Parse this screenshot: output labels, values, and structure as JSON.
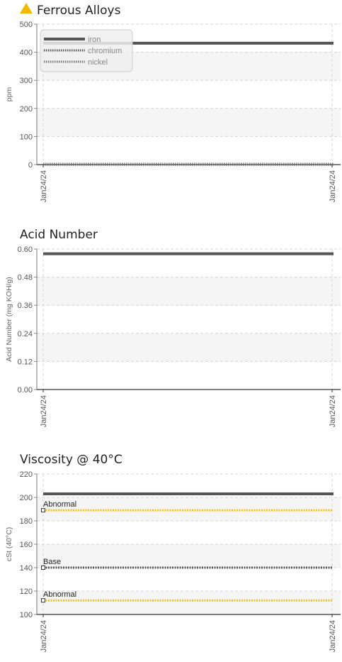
{
  "chart_data": [
    {
      "type": "line",
      "title": "Ferrous Alloys",
      "alert": "warning",
      "alert_color": "#f5b800",
      "xlabel": "",
      "ylabel": "ppm",
      "ylim": [
        0,
        500
      ],
      "yticks": [
        "500",
        "400",
        "300",
        "200",
        "100",
        "0"
      ],
      "x": [
        "Jan24/24",
        "Jan24/24"
      ],
      "legend_position": "top-left",
      "series": [
        {
          "name": "iron",
          "values": [
            432,
            432
          ],
          "color": "#555555",
          "style": "solid"
        },
        {
          "name": "chromium",
          "values": [
            0,
            0
          ],
          "color": "#555555",
          "style": "dotted"
        },
        {
          "name": "nickel",
          "values": [
            0,
            0
          ],
          "color": "#777777",
          "style": "dotted"
        }
      ]
    },
    {
      "type": "line",
      "title": "Acid Number",
      "xlabel": "",
      "ylabel": "Acid Number (mg KOH/g)",
      "ylim": [
        0,
        0.6
      ],
      "yticks": [
        "0.60",
        "0.48",
        "0.36",
        "0.24",
        "0.12",
        "0.00"
      ],
      "x": [
        "Jan24/24",
        "Jan24/24"
      ],
      "series": [
        {
          "values": [
            0.58,
            0.58
          ],
          "color": "#555555",
          "style": "solid"
        }
      ]
    },
    {
      "type": "line",
      "title": "Viscosity @ 40°C",
      "xlabel": "",
      "ylabel": "cSt (40°C)",
      "ylim": [
        100,
        220
      ],
      "yticks": [
        "220",
        "200",
        "180",
        "160",
        "140",
        "120",
        "100"
      ],
      "x": [
        "Jan24/24",
        "Jan24/24"
      ],
      "series": [
        {
          "values": [
            203,
            203
          ],
          "color": "#555555",
          "style": "solid"
        }
      ],
      "reference_lines": [
        {
          "label": "Abnormal",
          "value": 189,
          "color": "#f0c419"
        },
        {
          "label": "Base",
          "value": 140,
          "color": "#555555"
        },
        {
          "label": "Abnormal",
          "value": 112,
          "color": "#f0c419"
        }
      ]
    }
  ]
}
